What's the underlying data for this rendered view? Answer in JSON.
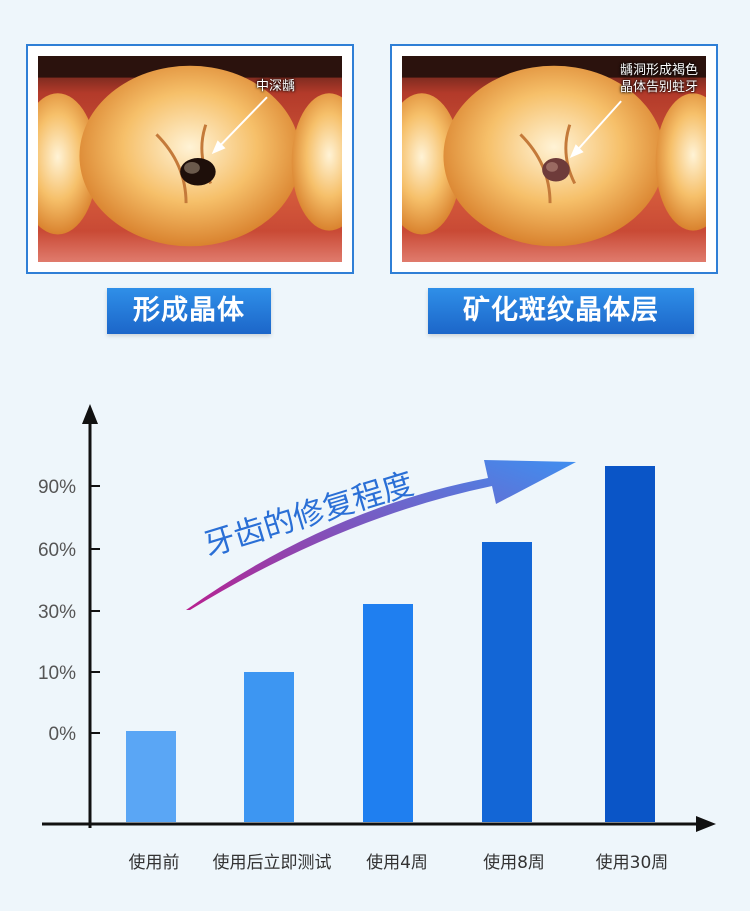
{
  "photos": [
    {
      "note_lines": [
        "中深龋"
      ],
      "caption": "形成晶体"
    },
    {
      "note_lines": [
        "龋洞形成褐色",
        "晶体告别蛀牙"
      ],
      "caption": "矿化斑纹晶体层"
    }
  ],
  "colors": {
    "frame": "#2f7fd6",
    "caption_bg": "#1c66c9",
    "arrow_start": "#b8208f",
    "arrow_end": "#3f8ff0"
  },
  "chart_data": {
    "type": "bar",
    "title": "牙齿的修复程度",
    "xlabel": "",
    "ylabel": "",
    "categories": [
      "使用前",
      "使用后立即测试",
      "使用4周",
      "使用8周",
      "使用30周"
    ],
    "values": [
      0,
      10,
      30,
      60,
      90
    ],
    "bar_colors": [
      "#5aa6f5",
      "#3d96f2",
      "#1f7ff0",
      "#1366d6",
      "#0a55c7"
    ],
    "y_ticks": [
      "0%",
      "10%",
      "30%",
      "60%",
      "90%"
    ],
    "note": "bars overshoot the tick position slightly; last bar ≈ 98% visual height",
    "grid": false,
    "legend": "none"
  }
}
